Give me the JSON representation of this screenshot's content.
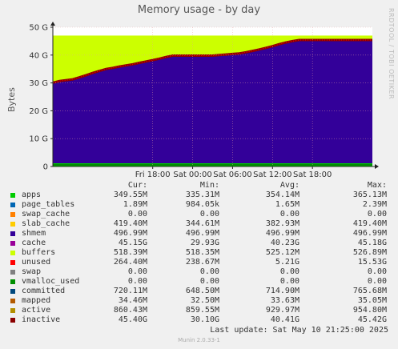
{
  "chart_data": {
    "type": "area",
    "title": "Memory usage - by day",
    "ylabel": "Bytes",
    "ylim": [
      0,
      50
    ],
    "yticks": [
      0,
      10,
      20,
      30,
      40,
      50
    ],
    "ytick_labels": [
      "0",
      "10 G",
      "20 G",
      "30 G",
      "40 G",
      "50 G"
    ],
    "xlim_hours": [
      -21,
      27
    ],
    "xticks_hours": [
      -6,
      0,
      6,
      12,
      18
    ],
    "xtick_labels": [
      "Fri 18:00",
      "Sat 00:00",
      "Sat 06:00",
      "Sat 12:00",
      "Sat 18:00"
    ],
    "grid": true,
    "background_color": "#ffffff",
    "series": [
      {
        "name": "inactive_top",
        "color": "#8b0000",
        "x": [
          -21,
          -20,
          -18,
          -17,
          -16,
          -15,
          -14,
          -13,
          -12,
          -11,
          -10,
          -9,
          -8,
          -7,
          -6,
          -5,
          -4,
          -3,
          -2,
          -1,
          0,
          1,
          2,
          3,
          4,
          5,
          6,
          7,
          8,
          9,
          10,
          11,
          12,
          13,
          14,
          15,
          16,
          17,
          18,
          19,
          20,
          21,
          22,
          23,
          24,
          25,
          26,
          27
        ],
        "values": [
          30.1,
          30.7,
          31.3,
          32.0,
          32.8,
          33.6,
          34.3,
          35.0,
          35.4,
          35.9,
          36.3,
          36.7,
          37.2,
          37.7,
          38.2,
          38.7,
          39.3,
          39.8,
          39.8,
          39.8,
          39.8,
          39.8,
          39.8,
          39.8,
          40.0,
          40.2,
          40.4,
          40.6,
          41.0,
          41.5,
          42.0,
          42.6,
          43.2,
          43.9,
          44.5,
          45.0,
          45.4,
          45.4,
          45.4,
          45.4,
          45.4,
          45.4,
          45.4,
          45.4,
          45.4,
          45.4,
          45.4,
          45.4
        ]
      },
      {
        "name": "unused_top",
        "color": "#ccff00",
        "x": [
          -21,
          27
        ],
        "values": [
          47.0,
          47.0
        ]
      }
    ]
  },
  "legend": {
    "headers": [
      "Cur:",
      "Min:",
      "Avg:",
      "Max:"
    ],
    "rows": [
      {
        "name": "apps",
        "color": "#00cc00",
        "cur": "349.55M",
        "min": "335.31M",
        "avg": "354.14M",
        "max": "365.13M"
      },
      {
        "name": "page_tables",
        "color": "#0066b3",
        "cur": "1.89M",
        "min": "984.05k",
        "avg": "1.65M",
        "max": "2.39M"
      },
      {
        "name": "swap_cache",
        "color": "#ff8000",
        "cur": "0.00",
        "min": "0.00",
        "avg": "0.00",
        "max": "0.00"
      },
      {
        "name": "slab_cache",
        "color": "#ffcc00",
        "cur": "419.40M",
        "min": "344.61M",
        "avg": "382.93M",
        "max": "419.40M"
      },
      {
        "name": "shmem",
        "color": "#330099",
        "cur": "496.99M",
        "min": "496.99M",
        "avg": "496.99M",
        "max": "496.99M"
      },
      {
        "name": "cache",
        "color": "#990099",
        "cur": "45.15G",
        "min": "29.93G",
        "avg": "40.23G",
        "max": "45.18G"
      },
      {
        "name": "buffers",
        "color": "#ccff00",
        "cur": "518.39M",
        "min": "518.35M",
        "avg": "525.12M",
        "max": "526.89M"
      },
      {
        "name": "unused",
        "color": "#ff0000",
        "cur": "264.40M",
        "min": "238.67M",
        "avg": "5.21G",
        "max": "15.53G"
      },
      {
        "name": "swap",
        "color": "#808080",
        "cur": "0.00",
        "min": "0.00",
        "avg": "0.00",
        "max": "0.00"
      },
      {
        "name": "vmalloc_used",
        "color": "#008f00",
        "cur": "0.00",
        "min": "0.00",
        "avg": "0.00",
        "max": "0.00"
      },
      {
        "name": "committed",
        "color": "#00487d",
        "cur": "720.11M",
        "min": "648.50M",
        "avg": "714.90M",
        "max": "765.68M"
      },
      {
        "name": "mapped",
        "color": "#b35a00",
        "cur": "34.46M",
        "min": "32.50M",
        "avg": "33.63M",
        "max": "35.05M"
      },
      {
        "name": "active",
        "color": "#b38f00",
        "cur": "860.43M",
        "min": "859.55M",
        "avg": "929.97M",
        "max": "954.80M"
      },
      {
        "name": "inactive",
        "color": "#8b0000",
        "cur": "45.40G",
        "min": "30.10G",
        "avg": "40.41G",
        "max": "45.42G"
      }
    ]
  },
  "last_update": "Last update:  Sat May 10 21:25:00 2025",
  "watermark": "RRDTOOL / TOBI OETIKER",
  "version": "Munin 2.0.33-1"
}
